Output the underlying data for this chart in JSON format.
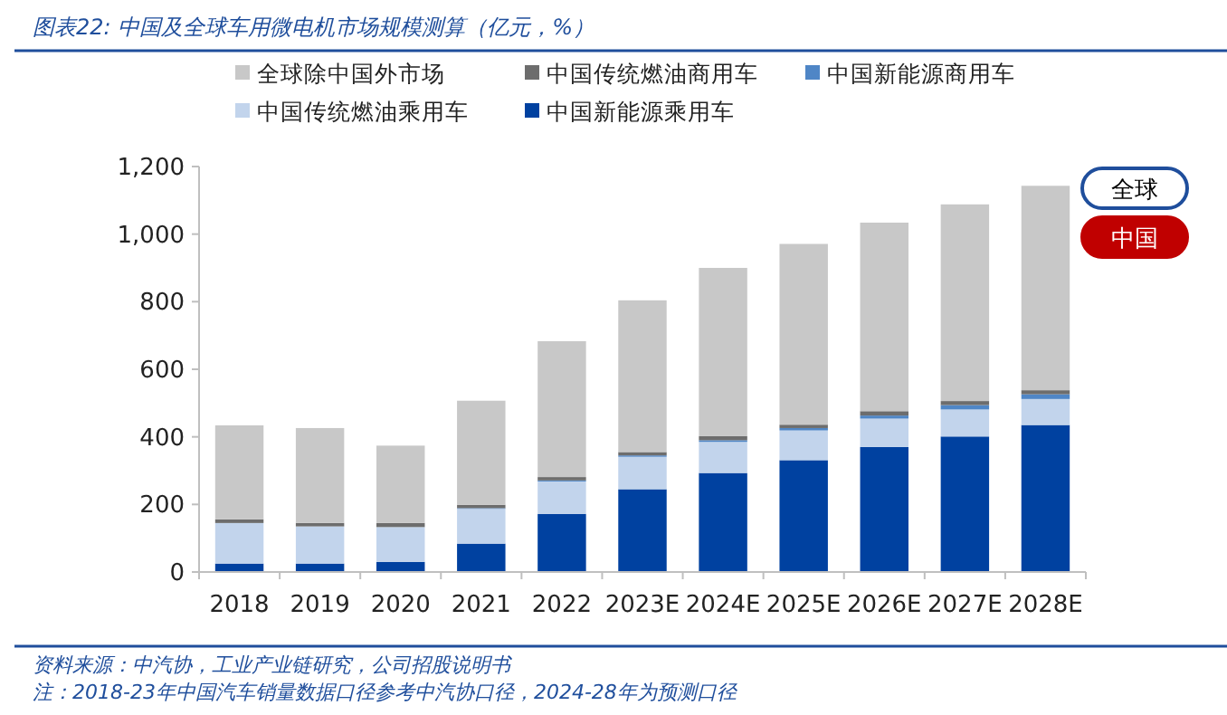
{
  "chart_data": {
    "type": "bar",
    "stacked": true,
    "title": "图表22: 中国及全球车用微电机市场规模测算（亿元，%）",
    "categories": [
      "2018",
      "2019",
      "2020",
      "2021",
      "2022",
      "2023E",
      "2024E",
      "2025E",
      "2026E",
      "2027E",
      "2028E"
    ],
    "series": [
      {
        "name": "中国新能源乘用车",
        "color": "#0041a0",
        "values": [
          25,
          25,
          30,
          84,
          172,
          245,
          293,
          331,
          370,
          401,
          435
        ]
      },
      {
        "name": "中国传统燃油乘用车",
        "color": "#c2d4ec",
        "values": [
          120,
          110,
          103,
          103,
          96,
          96,
          92,
          88,
          84,
          80,
          77
        ]
      },
      {
        "name": "中国新能源商用车",
        "color": "#4f86c6",
        "values": [
          null,
          null,
          null,
          2,
          3,
          4,
          5,
          7,
          9,
          13,
          14
        ]
      },
      {
        "name": "中国传统燃油商用车",
        "color": "#6d6d6d",
        "values": [
          11,
          10,
          12,
          10,
          10,
          10,
          12,
          10,
          13,
          12,
          12
        ]
      },
      {
        "name": "全球除中国外市场",
        "color": "#c8c8c8",
        "values": [
          278,
          281,
          229,
          308,
          402,
          449,
          498,
          535,
          558,
          582,
          605
        ]
      }
    ],
    "ylim": [
      0,
      1200
    ],
    "yticks": [
      {
        "value": 0,
        "label": "0"
      },
      {
        "value": 200,
        "label": "200"
      },
      {
        "value": 400,
        "label": "400"
      },
      {
        "value": 600,
        "label": "600"
      },
      {
        "value": 800,
        "label": "800"
      },
      {
        "value": 1000,
        "label": "1,000"
      },
      {
        "value": 1200,
        "label": "1,200"
      }
    ],
    "grid": false,
    "legend": "top",
    "annotations": [
      "资料来源：中汽协，工业产业链研究，公司招股说明书",
      "注：2018-23年中国汽车销量数据口径参考中汽协口径，2024-28年为预测口径",
      "全球",
      "中国"
    ]
  }
}
